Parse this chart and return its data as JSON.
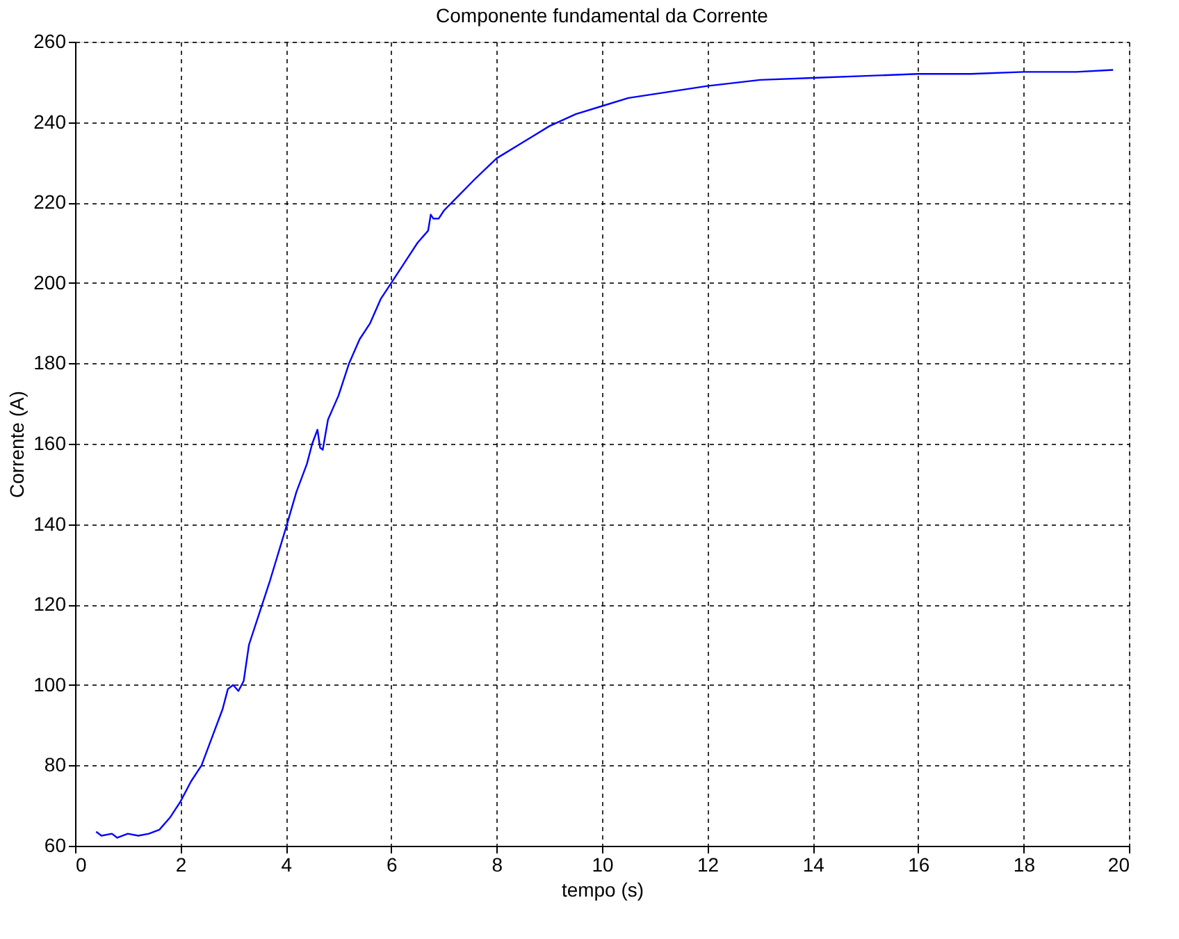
{
  "chart_data": {
    "type": "line",
    "title": "Componente fundamental da Corrente",
    "xlabel": "tempo (s)",
    "ylabel": "Corrente (A)",
    "xlim": [
      0,
      20
    ],
    "xticks": [
      0,
      2,
      4,
      6,
      8,
      10,
      12,
      14,
      16,
      18,
      20
    ],
    "ylim": [
      60,
      260
    ],
    "yticks": [
      60,
      80,
      100,
      120,
      140,
      160,
      180,
      200,
      220,
      240,
      260
    ],
    "grid": true,
    "line_style": "solid",
    "marker": "none",
    "series": [
      {
        "color": "#0000ff",
        "x": [
          0.4,
          0.5,
          0.7,
          0.8,
          1.0,
          1.2,
          1.4,
          1.6,
          1.8,
          2.0,
          2.2,
          2.4,
          2.6,
          2.8,
          2.9,
          3.0,
          3.1,
          3.2,
          3.3,
          3.5,
          3.7,
          4.0,
          4.2,
          4.4,
          4.5,
          4.6,
          4.65,
          4.7,
          4.8,
          5.0,
          5.2,
          5.4,
          5.6,
          5.8,
          6.0,
          6.3,
          6.5,
          6.7,
          6.75,
          6.8,
          6.9,
          7.0,
          7.3,
          7.6,
          8.0,
          8.5,
          9.0,
          9.5,
          10.0,
          10.5,
          11,
          12,
          13,
          14,
          15,
          16,
          17,
          18,
          19,
          19.7
        ],
        "values": [
          63.5,
          62.5,
          63,
          62,
          63,
          62.5,
          63,
          64,
          67,
          71,
          76,
          80,
          87,
          94,
          99,
          100,
          98.5,
          101,
          110,
          118,
          126,
          139,
          148,
          155,
          160,
          163.5,
          159,
          158.5,
          166,
          172,
          180,
          186,
          190,
          196,
          200,
          206,
          210,
          213,
          217,
          216,
          216,
          218,
          222,
          226,
          231,
          235,
          239,
          242,
          244,
          246,
          247,
          249,
          250.5,
          251,
          251.5,
          252,
          252,
          252.5,
          252.5,
          253
        ]
      }
    ]
  }
}
